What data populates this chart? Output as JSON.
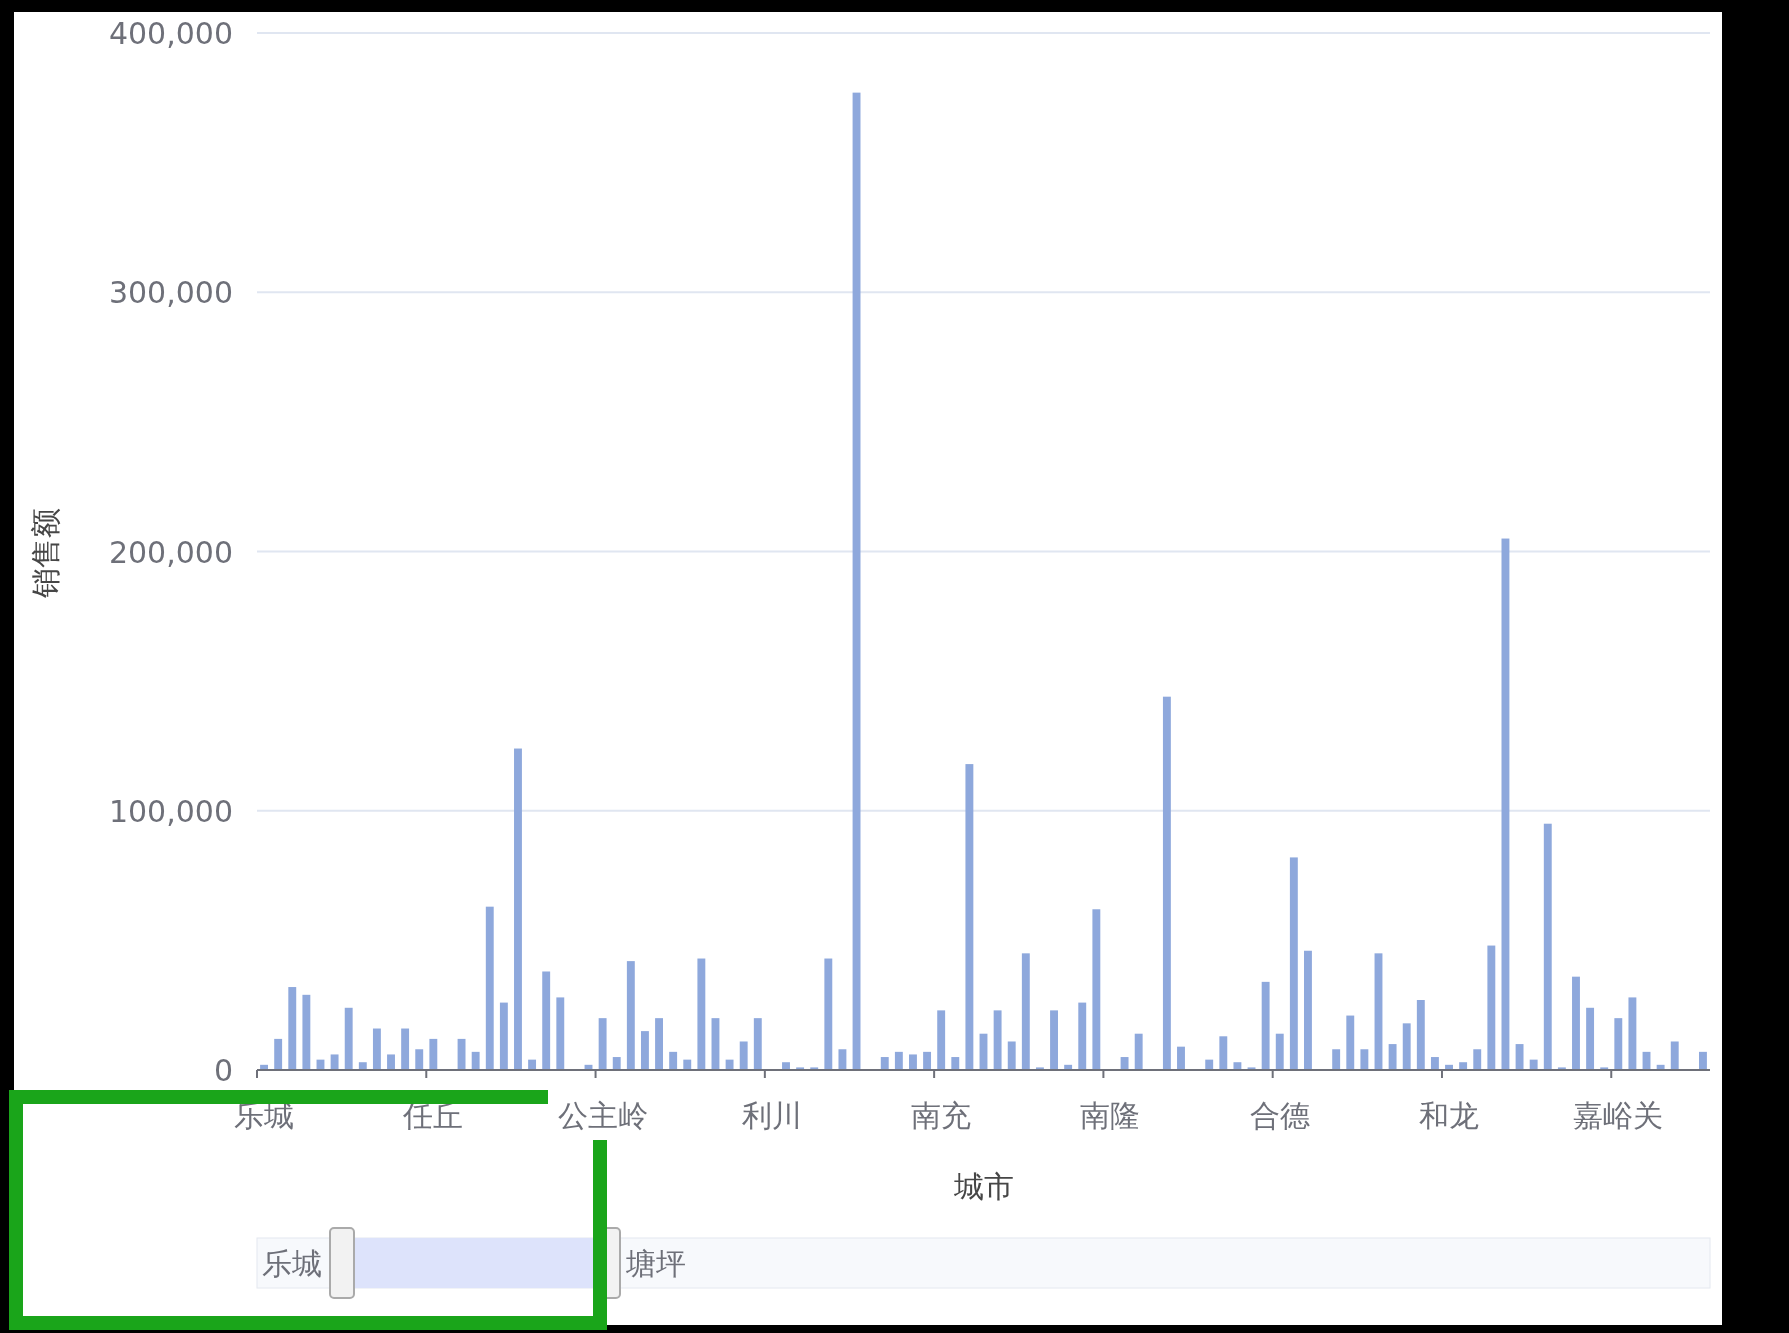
{
  "chart_data": {
    "type": "bar",
    "ylabel": "销售额",
    "xlabel": "城市",
    "categories": [
      "乐城",
      null,
      null,
      null,
      null,
      null,
      null,
      null,
      null,
      null,
      null,
      null,
      "任丘",
      null,
      null,
      null,
      null,
      null,
      null,
      null,
      null,
      null,
      null,
      null,
      "公主岭",
      null,
      null,
      null,
      null,
      null,
      null,
      null,
      null,
      null,
      null,
      null,
      "利川",
      null,
      null,
      null,
      null,
      null,
      null,
      null,
      null,
      null,
      null,
      null,
      "南充",
      null,
      null,
      null,
      null,
      null,
      null,
      null,
      null,
      null,
      null,
      null,
      "南隆",
      null,
      null,
      null,
      null,
      null,
      null,
      null,
      null,
      null,
      null,
      null,
      "合德",
      null,
      null,
      null,
      null,
      null,
      null,
      null,
      null,
      null,
      null,
      null,
      "和龙",
      null,
      null,
      null,
      null,
      null,
      null,
      null,
      null,
      null,
      null,
      null,
      "嘉峪关",
      null,
      null,
      null,
      null,
      null,
      null
    ],
    "values": [
      2000,
      12000,
      32000,
      29000,
      4000,
      6000,
      24000,
      3000,
      16000,
      6000,
      16000,
      8000,
      12000,
      0,
      12000,
      7000,
      63000,
      26000,
      124000,
      4000,
      38000,
      28000,
      0,
      2000,
      20000,
      5000,
      42000,
      15000,
      20000,
      7000,
      4000,
      43000,
      20000,
      4000,
      11000,
      20000,
      0,
      3000,
      1000,
      1000,
      43000,
      8000,
      377000,
      0,
      5000,
      7000,
      6000,
      7000,
      23000,
      5000,
      118000,
      14000,
      23000,
      11000,
      45000,
      1000,
      23000,
      2000,
      26000,
      62000,
      0,
      5000,
      14000,
      0,
      144000,
      9000,
      0,
      4000,
      13000,
      3000,
      1000,
      34000,
      14000,
      82000,
      46000,
      0,
      8000,
      21000,
      8000,
      45000,
      10000,
      18000,
      27000,
      5000,
      2000,
      3000,
      8000,
      48000,
      205000,
      10000,
      4000,
      95000,
      1000,
      36000,
      24000,
      1000,
      20000,
      28000,
      7000,
      2000,
      11000,
      0,
      7000
    ],
    "color": "#8ea8dc",
    "ylim": [
      0,
      400000
    ],
    "yticks": [
      {
        "value": 0,
        "label": "0"
      },
      {
        "value": 100000,
        "label": "100,000"
      },
      {
        "value": 200000,
        "label": "200,000"
      },
      {
        "value": 300000,
        "label": "300,000"
      },
      {
        "value": 400000,
        "label": "400,000"
      }
    ],
    "grid": "y",
    "annotations": [
      "乐城",
      "塘坪"
    ]
  }
}
